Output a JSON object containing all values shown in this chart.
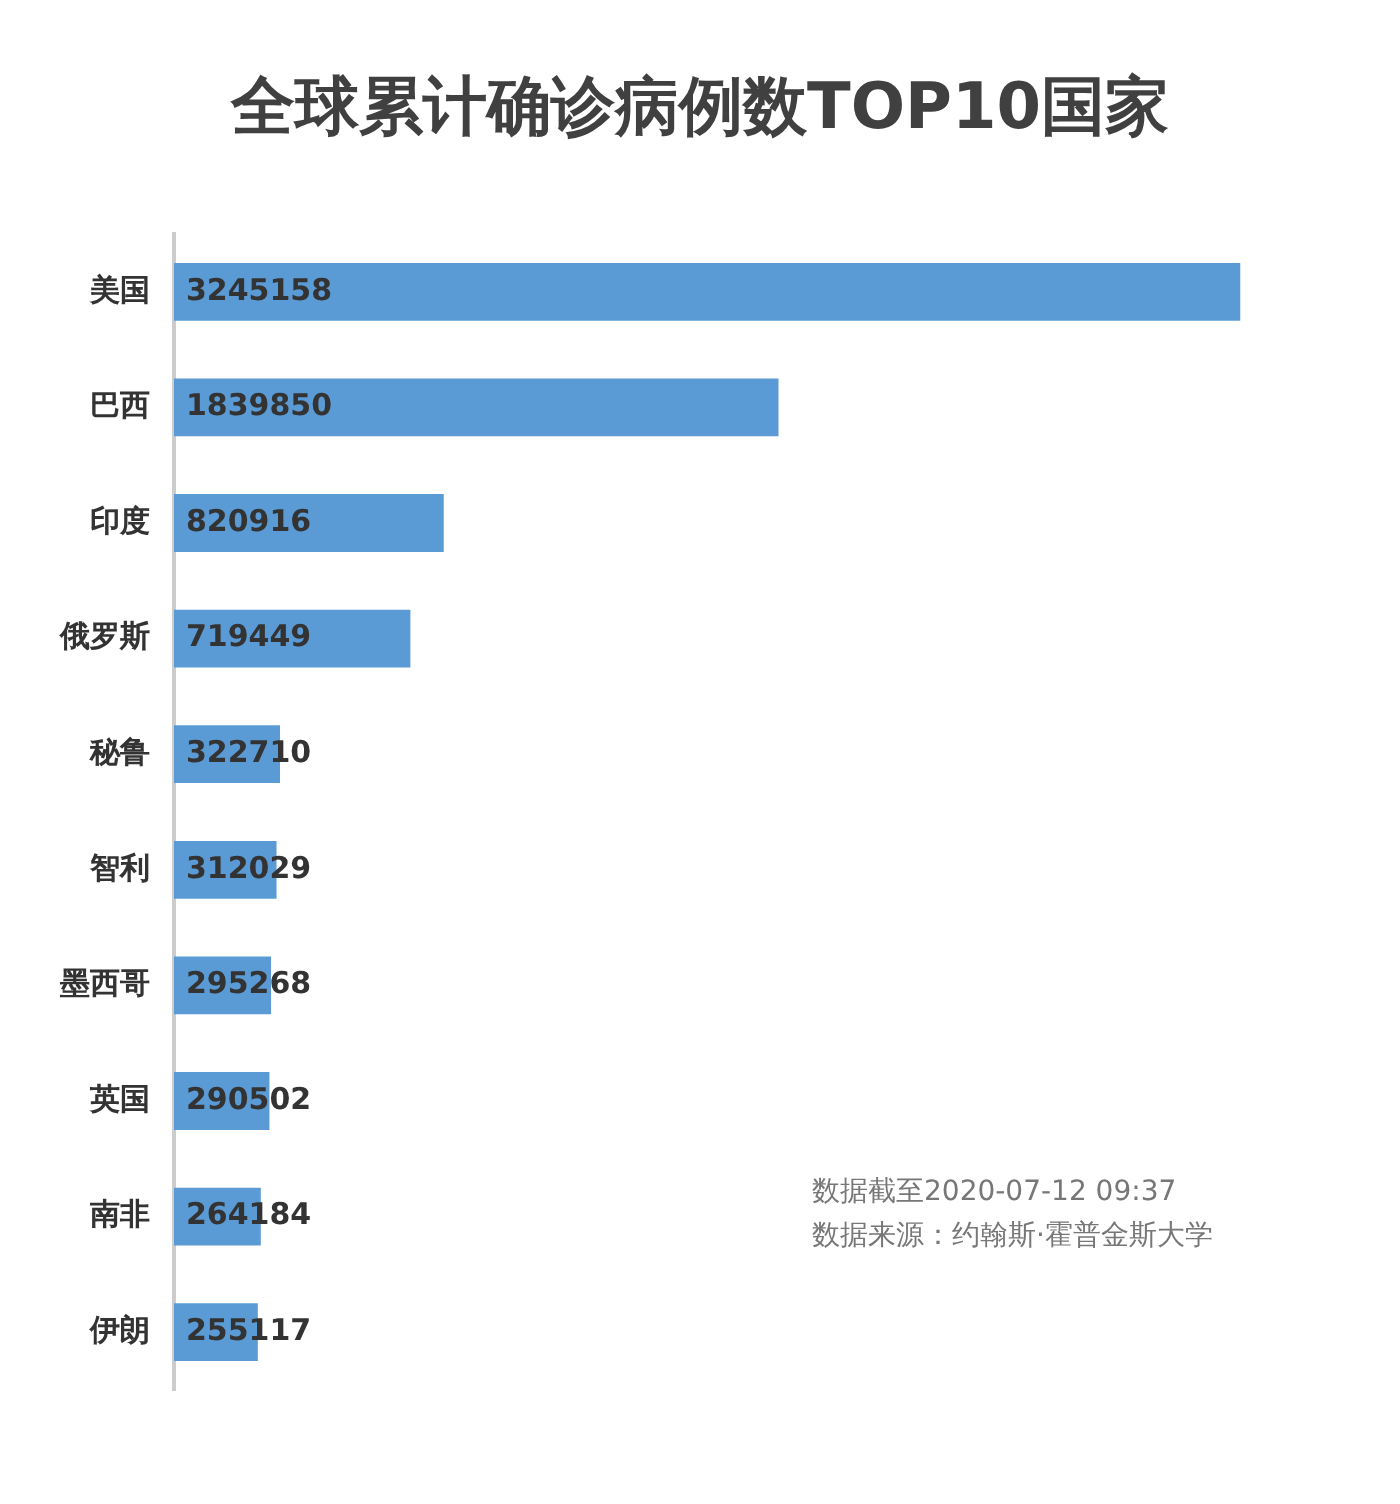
{
  "chart_data": {
    "type": "bar",
    "orientation": "horizontal",
    "title": "全球累计确诊病例数TOP10国家",
    "categories": [
      "美国",
      "巴西",
      "印度",
      "俄罗斯",
      "秘鲁",
      "智利",
      "墨西哥",
      "英国",
      "南非",
      "伊朗"
    ],
    "values": [
      3245158,
      1839850,
      820916,
      719449,
      322710,
      312029,
      295268,
      290502,
      264184,
      255117
    ],
    "color": "#5b9bd5",
    "data_labels": true,
    "annotations": [
      "数据截至2020-07-12 09:37",
      "数据来源：约翰斯·霍普金斯大学"
    ]
  }
}
